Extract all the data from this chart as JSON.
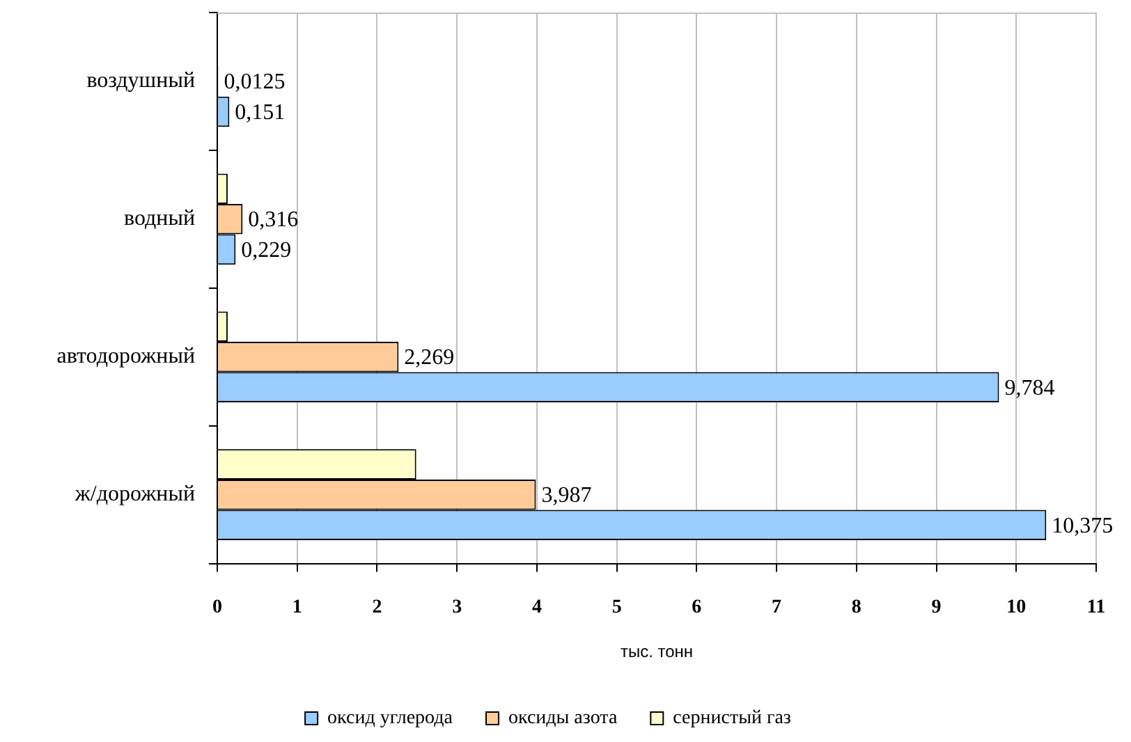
{
  "chart_data": {
    "type": "bar",
    "orientation": "horizontal",
    "categories": [
      "воздушный",
      "водный",
      "автодорожный",
      "ж/дорожный"
    ],
    "series": [
      {
        "name": "оксид углерода",
        "color": "#99ccff",
        "values": [
          0.151,
          0.229,
          9.784,
          10.375
        ],
        "value_labels": [
          "0,151",
          "0,229",
          "9,784",
          "10,375"
        ]
      },
      {
        "name": "оксиды азота",
        "color": "#ffcc99",
        "values": [
          0.0125,
          0.316,
          2.269,
          3.987
        ],
        "value_labels": [
          "0,0125",
          "0,316",
          "2,269",
          "3,987"
        ]
      },
      {
        "name": "сернистый газ",
        "color": "#ffffcc",
        "values": [
          null,
          0.13,
          0.13,
          2.49
        ]
      }
    ],
    "xlabel": "тыс. тонн",
    "xlim": [
      0,
      11
    ],
    "xticks": [
      0,
      1,
      2,
      3,
      4,
      5,
      6,
      7,
      8,
      9,
      10,
      11
    ],
    "grid": "x",
    "legend": "bottom"
  }
}
